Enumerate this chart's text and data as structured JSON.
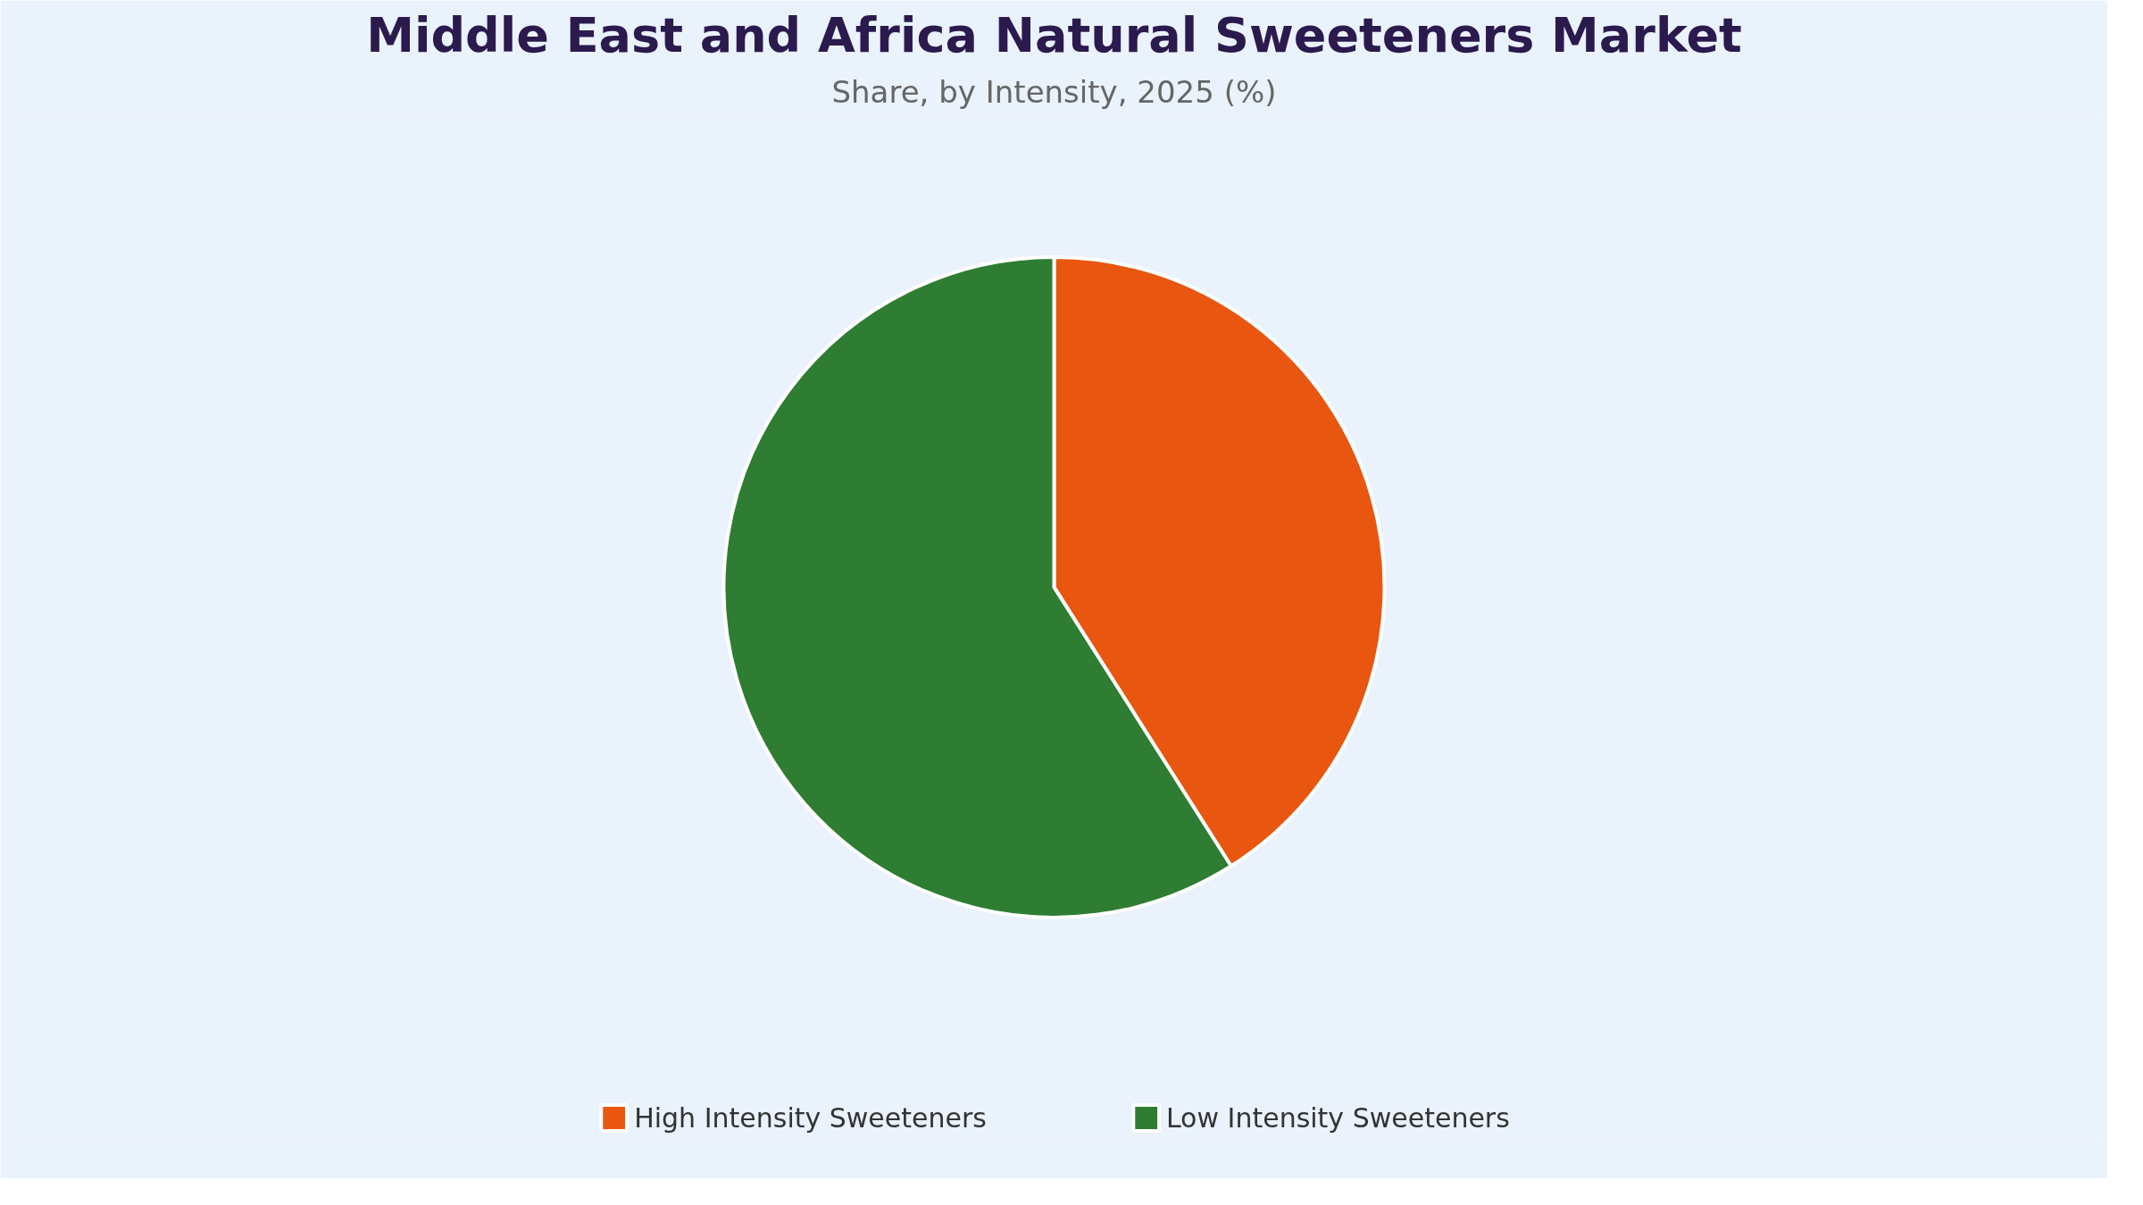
{
  "chart_data": {
    "type": "pie",
    "title": "Middle East and Africa Natural Sweeteners Market",
    "subtitle": "Share, by Intensity, 2025 (%)",
    "categories": [
      "High Intensity Sweeteners",
      "Low Intensity Sweeteners"
    ],
    "values": [
      41,
      59
    ],
    "colors": [
      "#e8560f",
      "#2e7d32"
    ],
    "legend": "bottom"
  }
}
